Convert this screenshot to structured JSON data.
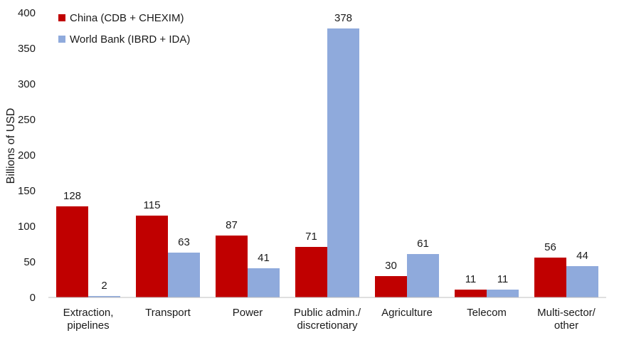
{
  "chart_data": {
    "type": "bar",
    "categories": [
      [
        "Extraction,",
        "pipelines"
      ],
      [
        "Transport"
      ],
      [
        "Power"
      ],
      [
        "Public admin./",
        "discretionary"
      ],
      [
        "Agriculture"
      ],
      [
        "Telecom"
      ],
      [
        "Multi-sector/",
        "other"
      ]
    ],
    "series": [
      {
        "name": "China (CDB + CHEXIM)",
        "values": [
          128,
          115,
          87,
          71,
          30,
          11,
          56
        ],
        "color": "#c00000"
      },
      {
        "name": "World Bank (IBRD + IDA)",
        "values": [
          2,
          63,
          41,
          378,
          61,
          11,
          44
        ],
        "color": "#8faadc"
      }
    ],
    "title": "",
    "xlabel": "",
    "ylabel": "Billions of USD",
    "ylim": [
      0,
      400
    ],
    "yticks": [
      0,
      50,
      100,
      150,
      200,
      250,
      300,
      350,
      400
    ],
    "grid": false,
    "legend_position": "top-left"
  }
}
